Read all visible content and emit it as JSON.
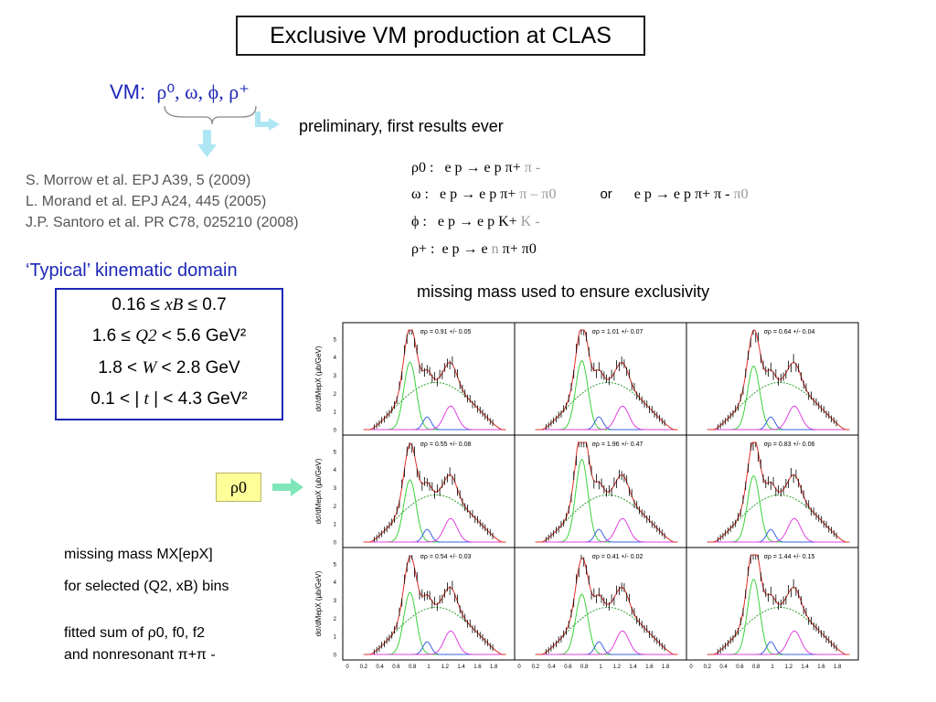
{
  "title": "Exclusive VM production at CLAS",
  "vm": {
    "prefix": "VM:",
    "list": "ρ⁰, ω, ϕ, ρ⁺"
  },
  "preliminary": "preliminary, first results ever",
  "references": [
    "S. Morrow et al. EPJ A39, 5 (2009)",
    "L. Morand et al. EPJ A24, 445 (2005)",
    "J.P.  Santoro et al. PR C78, 025210 (2008)"
  ],
  "reactions": {
    "rho0": {
      "lhs": "ρ0 :",
      "body": "e p → e p π+",
      "grey": "π -"
    },
    "omega": {
      "lhs": "ω :",
      "body": "e p → e p π+",
      "grey": "π – π0",
      "or": "or",
      "alt": "e p → e p π+ π -",
      "alt_grey": "π0"
    },
    "phi": {
      "lhs": "ϕ :",
      "body": "e p → e p K+",
      "grey": "K -"
    },
    "rhoplus": {
      "lhs": "ρ+ :",
      "body_a": "e p → e",
      "grey": "n",
      "body_b": "π+ π0"
    }
  },
  "missing_mass_note": "missing mass used to ensure exclusivity",
  "typical_domain": "‘Typical’ kinematic domain",
  "kinematics": [
    {
      "a": "0.16 ≤ ",
      "v": "xB",
      "b": " ≤ 0.7"
    },
    {
      "a": "1.6 ≤ ",
      "v": "Q2",
      "b": " < 5.6 GeV²"
    },
    {
      "a": "1.8 < ",
      "v": "W",
      "b": " < 2.8 GeV"
    },
    {
      "a": "0.1 < | ",
      "v": "t",
      "b": " | < 4.3 GeV²"
    }
  ],
  "rho_label": "ρ0",
  "notes": {
    "line1": "missing mass MX[epX]",
    "line2": "for selected (Q2, xB) bins",
    "line3": "fitted sum of ρ0, f0, f2",
    "line4": "and nonresonant π+π -"
  },
  "colors": {
    "accent": "#1d27b6",
    "rho_box": "#ffff99",
    "arrow": "#aee6f3",
    "arrow_green": "#7fe6b9",
    "fit_total": "#e0302a",
    "fit_rho": "#3bd23b",
    "fit_nonres": "#2e9b2e",
    "fit_f0": "#3a62e0",
    "fit_f2": "#e040e0"
  },
  "chart_data": {
    "type": "line",
    "title": "",
    "xlabel": "",
    "ylabel": "dσ/dMepX (μb/GeV)",
    "x_ticks": [
      "0",
      "0.2",
      "0.4",
      "0.6",
      "0.8",
      "1",
      "1.2",
      "1.4",
      "1.6",
      "1.8"
    ],
    "y_ticks": [
      "0",
      "1",
      "2",
      "3",
      "4",
      "5"
    ],
    "xlim": [
      0,
      2.0
    ],
    "ylim": [
      0,
      5.5
    ],
    "grid": false,
    "panels": [
      {
        "label": "σρ = 0.91 +/- 0.05",
        "rho": 0.91,
        "err": 0.05
      },
      {
        "label": "σρ = 1.01 +/- 0.07",
        "rho": 1.01,
        "err": 0.07
      },
      {
        "label": "σρ = 0.64 +/- 0.04",
        "rho": 0.64,
        "err": 0.04
      },
      {
        "label": "σρ = 0.55 +/- 0.08",
        "rho": 0.55,
        "err": 0.08
      },
      {
        "label": "σρ = 1.96 +/- 0.47",
        "rho": 1.96,
        "err": 0.47
      },
      {
        "label": "σρ = 0.83 +/- 0.06",
        "rho": 0.83,
        "err": 0.06
      },
      {
        "label": "σρ = 0.54 +/- 0.03",
        "rho": 0.54,
        "err": 0.03
      },
      {
        "label": "σρ = 0.41 +/- 0.02",
        "rho": 0.41,
        "err": 0.02
      },
      {
        "label": "σρ = 1.44 +/- 0.15",
        "rho": 1.44,
        "err": 0.15
      }
    ]
  }
}
